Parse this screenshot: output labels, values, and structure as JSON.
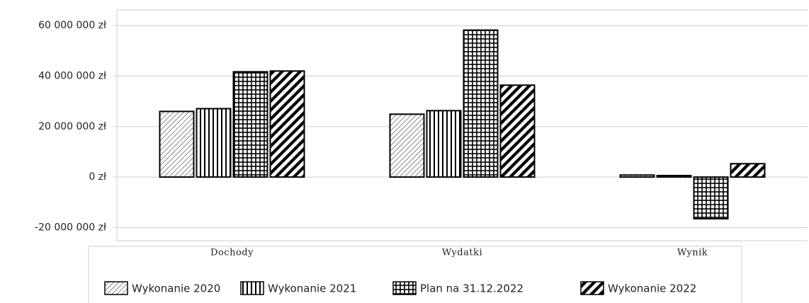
{
  "chart_data": {
    "type": "bar",
    "categories": [
      "Dochody",
      "Wydatki",
      "Wynik"
    ],
    "series": [
      {
        "name": "Wykonanie 2020",
        "color": "#000000",
        "values": [
          26000000,
          24900000,
          800000
        ]
      },
      {
        "name": "Wykonanie 2021",
        "color": "#000000",
        "values": [
          27100000,
          26300000,
          600000
        ]
      },
      {
        "name": "Plan na 31.12.2022",
        "color": "#000000",
        "values": [
          41700000,
          58200000,
          -16500000
        ]
      },
      {
        "name": "Wykonanie 2022",
        "color": "#000000",
        "values": [
          42000000,
          36400000,
          5300000
        ]
      }
    ],
    "ylim": [
      -25200000,
      66200000
    ],
    "yticks": [
      {
        "value": -20000000,
        "label": "-20 000 000 zł"
      },
      {
        "value": 0,
        "label": "0 zł"
      },
      {
        "value": 20000000,
        "label": "20 000 000 zł"
      },
      {
        "value": 40000000,
        "label": "40 000 000 zł"
      },
      {
        "value": 60000000,
        "label": "60 000 000 zł"
      }
    ],
    "grid": true
  }
}
